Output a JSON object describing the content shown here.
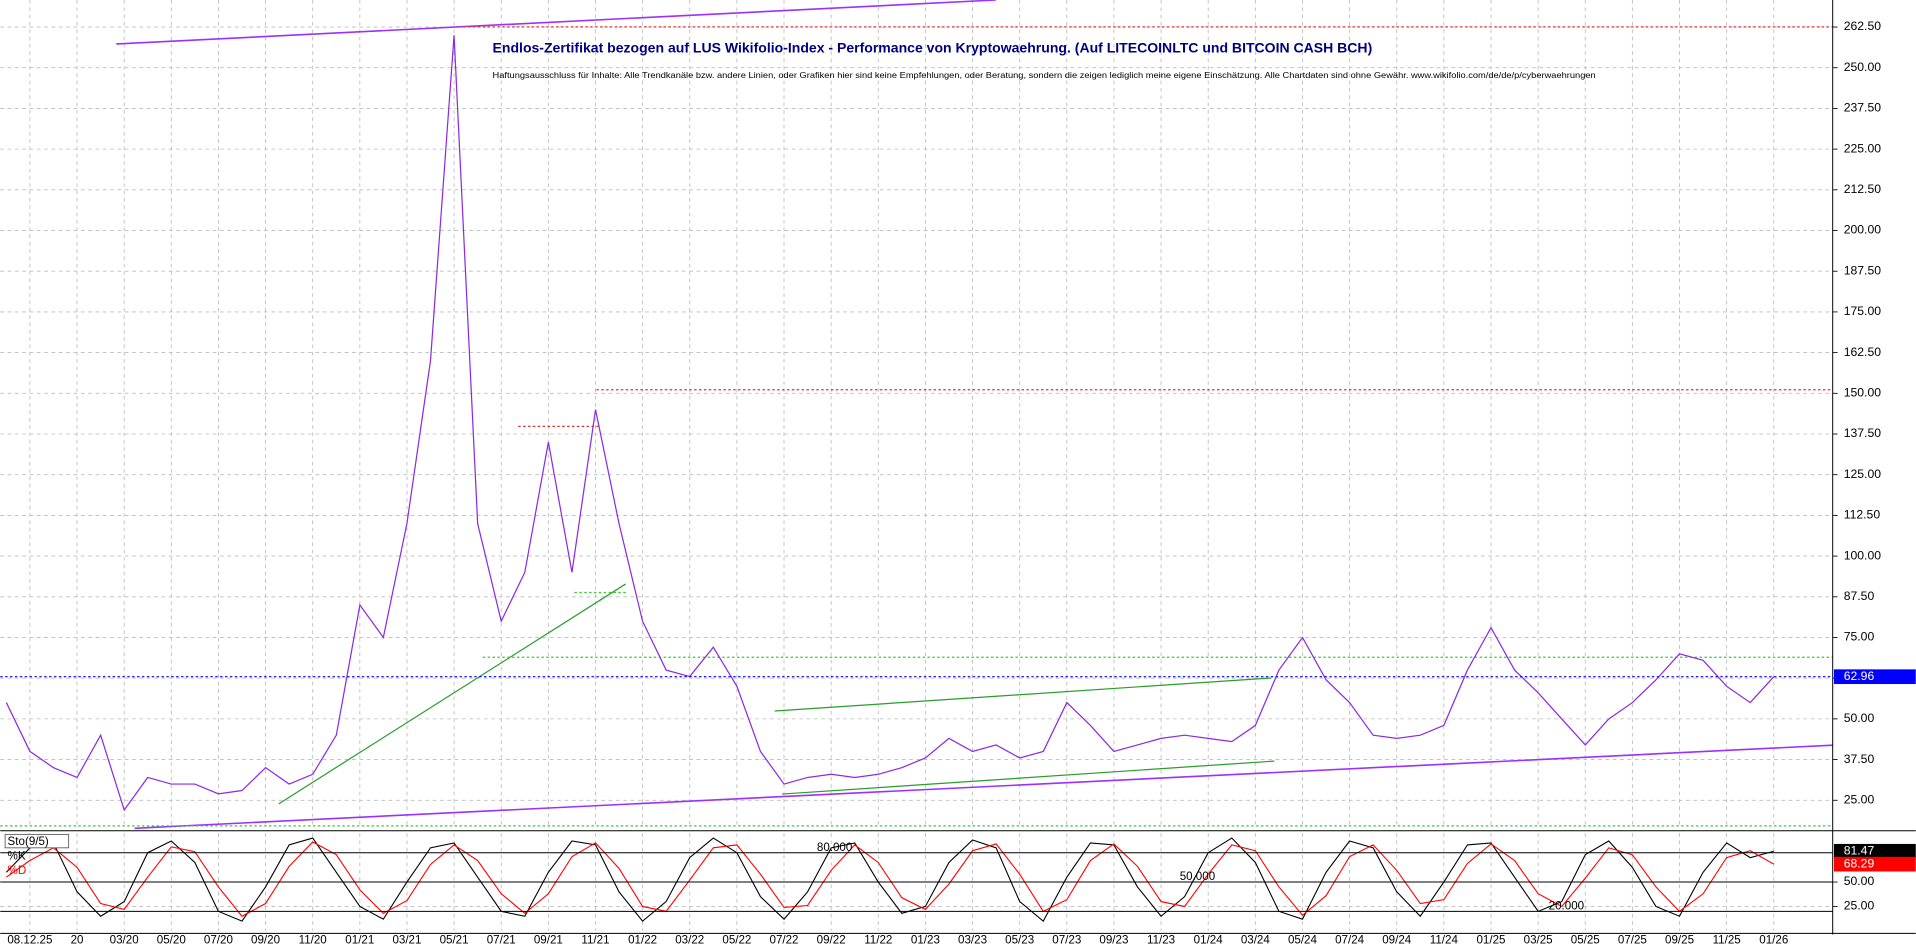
{
  "chart_data": [
    {
      "type": "line",
      "title": "Endlos-Zertifikat bezogen auf LUS Wikifolio-Index - Performance von Kryptowaehrung. (Auf LITECOINLTC und BITCOIN CASH BCH)",
      "subtitle": "Haftungsausschluss für Inhalte: Alle Trendkanäle bzw. andere Linien, oder Grafiken hier sind keine Empfehlungen, oder Beratung, sondern die zeigen lediglich meine eigene Einschätzung. Alle Chartdaten sind ohne Gewähr. www.wikifolio.com/de/de/p/cyberwaehrungen",
      "color": "#8a2be2",
      "values": [
        55,
        40,
        35,
        32,
        45,
        22,
        32,
        30,
        30,
        27,
        28,
        35,
        30,
        33,
        45,
        85,
        75,
        110,
        160,
        260,
        110,
        80,
        95,
        135,
        95,
        145,
        110,
        80,
        65,
        63,
        72,
        60,
        40,
        30,
        32,
        33,
        32,
        33,
        35,
        38,
        44,
        40,
        42,
        38,
        40,
        55,
        48,
        40,
        42,
        44,
        45,
        44,
        43,
        48,
        65,
        75,
        62,
        55,
        45,
        44,
        45,
        48,
        65,
        78,
        65,
        58,
        50,
        42,
        50,
        55,
        62,
        70,
        68,
        60,
        55,
        62.96
      ],
      "xlim": [
        0,
        77.5
      ],
      "xticks": [
        {
          "value": 1,
          "label": "08.12.25"
        },
        {
          "value": 3,
          "label": "20"
        },
        {
          "value": 5,
          "label": "03/20"
        },
        {
          "value": 7,
          "label": "05/20"
        },
        {
          "value": 9,
          "label": "07/20"
        },
        {
          "value": 11,
          "label": "09/20"
        },
        {
          "value": 13,
          "label": "11/20"
        },
        {
          "value": 15,
          "label": "01/21"
        },
        {
          "value": 17,
          "label": "03/21"
        },
        {
          "value": 19,
          "label": "05/21"
        },
        {
          "value": 21,
          "label": "07/21"
        },
        {
          "value": 23,
          "label": "09/21"
        },
        {
          "value": 25,
          "label": "11/21"
        },
        {
          "value": 27,
          "label": "01/22"
        },
        {
          "value": 29,
          "label": "03/22"
        },
        {
          "value": 31,
          "label": "05/22"
        },
        {
          "value": 33,
          "label": "07/22"
        },
        {
          "value": 35,
          "label": "09/22"
        },
        {
          "value": 37,
          "label": "11/22"
        },
        {
          "value": 39,
          "label": "01/23"
        },
        {
          "value": 41,
          "label": "03/23"
        },
        {
          "value": 43,
          "label": "05/23"
        },
        {
          "value": 45,
          "label": "07/23"
        },
        {
          "value": 47,
          "label": "09/23"
        },
        {
          "value": 49,
          "label": "11/23"
        },
        {
          "value": 51,
          "label": "01/24"
        },
        {
          "value": 53,
          "label": "03/24"
        },
        {
          "value": 55,
          "label": "05/24"
        },
        {
          "value": 57,
          "label": "07/24"
        },
        {
          "value": 59,
          "label": "09/24"
        },
        {
          "value": 61,
          "label": "11/24"
        },
        {
          "value": 63,
          "label": "01/25"
        },
        {
          "value": 65,
          "label": "03/25"
        },
        {
          "value": 67,
          "label": "05/25"
        },
        {
          "value": 69,
          "label": "07/25"
        },
        {
          "value": 71,
          "label": "09/25"
        },
        {
          "value": 73,
          "label": "11/25"
        },
        {
          "value": 75,
          "label": "01/26"
        }
      ],
      "ylim": [
        16.4,
        270.8
      ],
      "yticks": [
        {
          "value": 25,
          "label": "25.00"
        },
        {
          "value": 37.5,
          "label": "37.50"
        },
        {
          "value": 50,
          "label": "50.00"
        },
        {
          "value": 62.5,
          "label": "62.50"
        },
        {
          "value": 75,
          "label": "75.00"
        },
        {
          "value": 87.5,
          "label": "87.50"
        },
        {
          "value": 100,
          "label": "100.00"
        },
        {
          "value": 112.5,
          "label": "112.50"
        },
        {
          "value": 125,
          "label": "125.00"
        },
        {
          "value": 137.5,
          "label": "137.50"
        },
        {
          "value": 150,
          "label": "150.00"
        },
        {
          "value": 162.5,
          "label": "162.50"
        },
        {
          "value": 175,
          "label": "175.00"
        },
        {
          "value": 187.5,
          "label": "187.50"
        },
        {
          "value": 200,
          "label": "200.00"
        },
        {
          "value": 212.5,
          "label": "212.50"
        },
        {
          "value": 225,
          "label": "225.00"
        },
        {
          "value": 237.5,
          "label": "237.50"
        },
        {
          "value": 250,
          "label": "250.00"
        },
        {
          "value": 262.5,
          "label": "262.50"
        }
      ],
      "grid": true
    },
    {
      "type": "line",
      "title": "Sto(9/5)",
      "series": [
        {
          "name": "%K",
          "color": "#000000",
          "values": [
            60,
            85,
            90,
            40,
            15,
            30,
            80,
            92,
            70,
            20,
            10,
            45,
            88,
            95,
            60,
            25,
            12,
            50,
            85,
            90,
            55,
            20,
            15,
            60,
            92,
            88,
            40,
            10,
            30,
            75,
            95,
            80,
            35,
            12,
            40,
            85,
            90,
            50,
            18,
            25,
            70,
            93,
            85,
            30,
            10,
            55,
            90,
            88,
            45,
            15,
            35,
            80,
            95,
            70,
            20,
            12,
            60,
            92,
            85,
            40,
            15,
            50,
            88,
            90,
            55,
            20,
            30,
            78,
            92,
            65,
            25,
            15,
            60,
            90,
            75,
            81.47
          ]
        },
        {
          "name": "%D",
          "color": "#ff0000",
          "values": [
            55,
            72,
            85,
            65,
            28,
            22,
            55,
            86,
            81,
            45,
            15,
            28,
            66,
            91,
            78,
            42,
            18,
            31,
            68,
            88,
            72,
            38,
            18,
            38,
            76,
            90,
            64,
            25,
            20,
            52,
            85,
            88,
            58,
            24,
            26,
            62,
            88,
            70,
            34,
            22,
            48,
            82,
            89,
            58,
            20,
            32,
            72,
            89,
            66,
            30,
            25,
            58,
            88,
            82,
            45,
            16,
            36,
            76,
            88,
            62,
            28,
            32,
            69,
            89,
            72,
            38,
            25,
            54,
            85,
            78,
            45,
            20,
            38,
            75,
            82,
            68.29
          ]
        }
      ],
      "ylim": [
        0,
        100
      ],
      "yticks": [
        {
          "value": 25,
          "label": "25.00"
        },
        {
          "value": 50,
          "label": "50.00"
        }
      ],
      "levels": [
        {
          "value": 80,
          "label": "80.000"
        },
        {
          "value": 50,
          "label": "50.000"
        },
        {
          "value": 20,
          "label": "20.000"
        }
      ],
      "grid": true
    }
  ]
}
